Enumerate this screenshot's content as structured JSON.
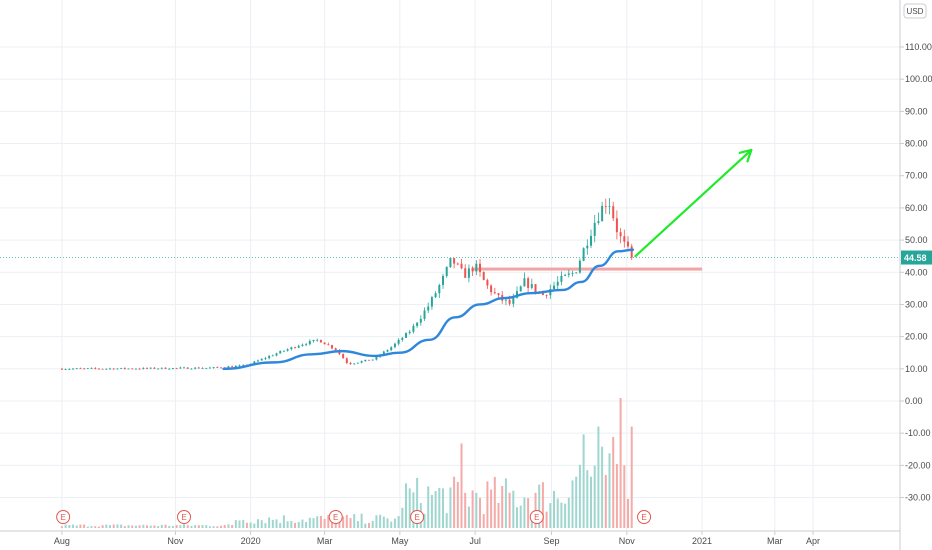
{
  "chart_data": {
    "type": "candlestick",
    "currency": "USD",
    "last_price": 44.58,
    "last_price_label": "44.58",
    "y_price_range": [
      0,
      117
    ],
    "price_ticks": [
      {
        "value": 110,
        "label": "110.00"
      },
      {
        "value": 100,
        "label": "100.00"
      },
      {
        "value": 90,
        "label": "90.00"
      },
      {
        "value": 80,
        "label": "80.00"
      },
      {
        "value": 70,
        "label": "70.00"
      },
      {
        "value": 60,
        "label": "60.00"
      },
      {
        "value": 50,
        "label": "50.00"
      },
      {
        "value": 40,
        "label": "40.00"
      },
      {
        "value": 30,
        "label": "30.00"
      },
      {
        "value": 20,
        "label": "20.00"
      },
      {
        "value": 10,
        "label": "10.00"
      },
      {
        "value": 0,
        "label": "0.00"
      },
      {
        "value": -10,
        "label": "-10.00"
      },
      {
        "value": -20,
        "label": "-20.00"
      },
      {
        "value": -30,
        "label": "-30.00"
      }
    ],
    "x_ticks": [
      {
        "date": "2019-08-01",
        "label": "Aug"
      },
      {
        "date": "2019-11-01",
        "label": "Nov"
      },
      {
        "date": "2020-01-01",
        "label": "2020"
      },
      {
        "date": "2020-03-01",
        "label": "Mar"
      },
      {
        "date": "2020-05-01",
        "label": "May"
      },
      {
        "date": "2020-07-01",
        "label": "Jul"
      },
      {
        "date": "2020-09-01",
        "label": "Sep"
      },
      {
        "date": "2020-11-01",
        "label": "Nov"
      },
      {
        "date": "2021-01-01",
        "label": "2021"
      },
      {
        "date": "2021-03-01",
        "label": "Mar"
      },
      {
        "date": "2021-04-01",
        "label": "Apr"
      }
    ],
    "x_range": [
      "2019-07-28",
      "2021-05-01"
    ],
    "price_keypoints": [
      {
        "date": "2019-08-01",
        "close": 10.0
      },
      {
        "date": "2019-10-01",
        "close": 10.1
      },
      {
        "date": "2019-12-01",
        "close": 10.3
      },
      {
        "date": "2019-12-28",
        "close": 11.0
      },
      {
        "date": "2020-01-20",
        "close": 14.5
      },
      {
        "date": "2020-02-10",
        "close": 17.5
      },
      {
        "date": "2020-02-25",
        "close": 19.0
      },
      {
        "date": "2020-03-10",
        "close": 16.0
      },
      {
        "date": "2020-03-20",
        "close": 11.5
      },
      {
        "date": "2020-04-10",
        "close": 13.0
      },
      {
        "date": "2020-04-25",
        "close": 17.0
      },
      {
        "date": "2020-05-10",
        "close": 22.0
      },
      {
        "date": "2020-05-25",
        "close": 30.0
      },
      {
        "date": "2020-06-05",
        "close": 38.0
      },
      {
        "date": "2020-06-12",
        "close": 44.0
      },
      {
        "date": "2020-06-22",
        "close": 39.0
      },
      {
        "date": "2020-07-01",
        "close": 42.0
      },
      {
        "date": "2020-07-10",
        "close": 36.0
      },
      {
        "date": "2020-07-20",
        "close": 32.0
      },
      {
        "date": "2020-07-30",
        "close": 30.0
      },
      {
        "date": "2020-08-10",
        "close": 37.0
      },
      {
        "date": "2020-08-25",
        "close": 33.0
      },
      {
        "date": "2020-09-10",
        "close": 38.0
      },
      {
        "date": "2020-09-20",
        "close": 40.0
      },
      {
        "date": "2020-09-28",
        "close": 48.0
      },
      {
        "date": "2020-10-05",
        "close": 55.0
      },
      {
        "date": "2020-10-12",
        "close": 60.0
      },
      {
        "date": "2020-10-17",
        "close": 63.0
      },
      {
        "date": "2020-10-25",
        "close": 52.0
      },
      {
        "date": "2020-11-01",
        "close": 47.0
      },
      {
        "date": "2020-11-06",
        "close": 44.58
      }
    ],
    "moving_average": [
      {
        "date": "2019-12-10",
        "value": 10.0
      },
      {
        "date": "2020-01-20",
        "value": 12.0
      },
      {
        "date": "2020-02-20",
        "value": 14.5
      },
      {
        "date": "2020-03-15",
        "value": 15.5
      },
      {
        "date": "2020-04-10",
        "value": 14.0
      },
      {
        "date": "2020-05-01",
        "value": 15.0
      },
      {
        "date": "2020-05-25",
        "value": 19.0
      },
      {
        "date": "2020-06-15",
        "value": 26.0
      },
      {
        "date": "2020-07-05",
        "value": 30.0
      },
      {
        "date": "2020-07-25",
        "value": 32.0
      },
      {
        "date": "2020-08-15",
        "value": 33.5
      },
      {
        "date": "2020-09-10",
        "value": 34.5
      },
      {
        "date": "2020-09-25",
        "value": 37.0
      },
      {
        "date": "2020-10-10",
        "value": 42.0
      },
      {
        "date": "2020-10-25",
        "value": 46.5
      },
      {
        "date": "2020-11-06",
        "value": 47.0
      }
    ],
    "horizontal_level": {
      "value": 41.0,
      "from_date": "2020-06-28",
      "to_date": "2021-01-01",
      "color": "#f4a3a3"
    },
    "arrow": {
      "from": {
        "date": "2020-11-08",
        "value": 45.0
      },
      "to": {
        "date": "2021-02-10",
        "value": 78.0
      },
      "color": "#1fea2c"
    },
    "volume_spikes": [
      {
        "date": "2020-06-20",
        "value": 0.65
      },
      {
        "date": "2020-09-28",
        "value": 0.72
      },
      {
        "date": "2020-10-08",
        "value": 0.78
      },
      {
        "date": "2020-10-22",
        "value": 0.7
      },
      {
        "date": "2020-10-27",
        "value": 1.0
      },
      {
        "date": "2020-11-06",
        "value": 0.78
      }
    ],
    "earnings_dates": [
      {
        "date": "2019-08-02",
        "label": "E"
      },
      {
        "date": "2019-11-08",
        "label": "E"
      },
      {
        "date": "2020-03-10",
        "label": "E"
      },
      {
        "date": "2020-05-15",
        "label": "E"
      },
      {
        "date": "2020-08-20",
        "label": "E"
      },
      {
        "date": "2020-11-15",
        "label": "E"
      }
    ],
    "colors": {
      "up": "#26a69a",
      "down": "#ef5350",
      "volume_up": "#9fd6cf",
      "volume_down": "#f4aaa8",
      "ma": "#2f87dd",
      "grid": "#eceff3",
      "badge": "#26a69a",
      "last_price_line": "#26a69a"
    }
  }
}
